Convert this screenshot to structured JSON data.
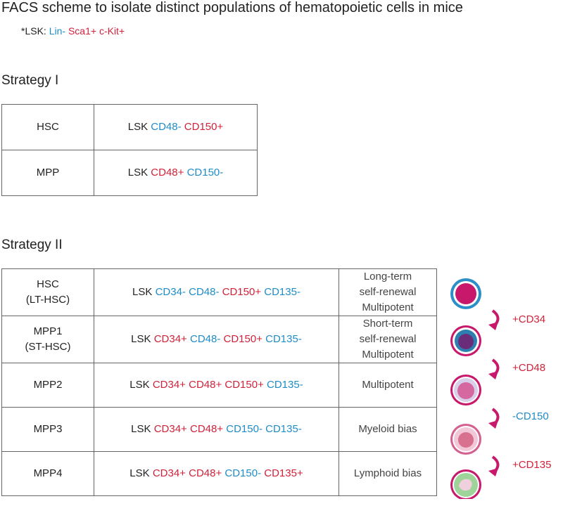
{
  "title": "FACS scheme to isolate distinct populations of hematopoietic cells in mice",
  "note": {
    "label": "*LSK:",
    "markers": [
      "Lin-",
      "Sca1+",
      "c-Kit+"
    ]
  },
  "strategy1": {
    "heading": "Strategy I",
    "rows": [
      {
        "population": [
          "HSC"
        ],
        "prefix": "LSK",
        "markers": [
          "CD48-",
          "CD150+"
        ]
      },
      {
        "population": [
          "MPP"
        ],
        "prefix": "LSK",
        "markers": [
          "CD48+",
          "CD150-"
        ]
      }
    ]
  },
  "strategy2": {
    "heading": "Strategy II",
    "rows": [
      {
        "population": [
          "HSC",
          "(LT-HSC)"
        ],
        "prefix": "LSK",
        "markers": [
          "CD34-",
          "CD48-",
          "CD150+",
          "CD135-"
        ],
        "description": [
          "Long-term",
          "self-renewal",
          "Multipotent"
        ]
      },
      {
        "population": [
          "MPP1",
          "(ST-HSC)"
        ],
        "prefix": "LSK",
        "markers": [
          "CD34+",
          "CD48-",
          "CD150+",
          "CD135-"
        ],
        "description": [
          "Short-term",
          "self-renewal",
          "Multipotent"
        ]
      },
      {
        "population": [
          "MPP2"
        ],
        "prefix": "LSK",
        "markers": [
          "CD34+",
          "CD48+",
          "CD150+",
          "CD135-"
        ],
        "description": [
          "Multipotent"
        ]
      },
      {
        "population": [
          "MPP3"
        ],
        "prefix": "LSK",
        "markers": [
          "CD34+",
          "CD48+",
          "CD150-",
          "CD135-"
        ],
        "description": [
          "Myeloid bias"
        ]
      },
      {
        "population": [
          "MPP4"
        ],
        "prefix": "LSK",
        "markers": [
          "CD34+",
          "CD48+",
          "CD150-",
          "CD135+"
        ],
        "description": [
          "Lymphoid bias"
        ]
      }
    ],
    "transitions": [
      "+CD34",
      "+CD48",
      "-CD150",
      "+CD135"
    ]
  }
}
